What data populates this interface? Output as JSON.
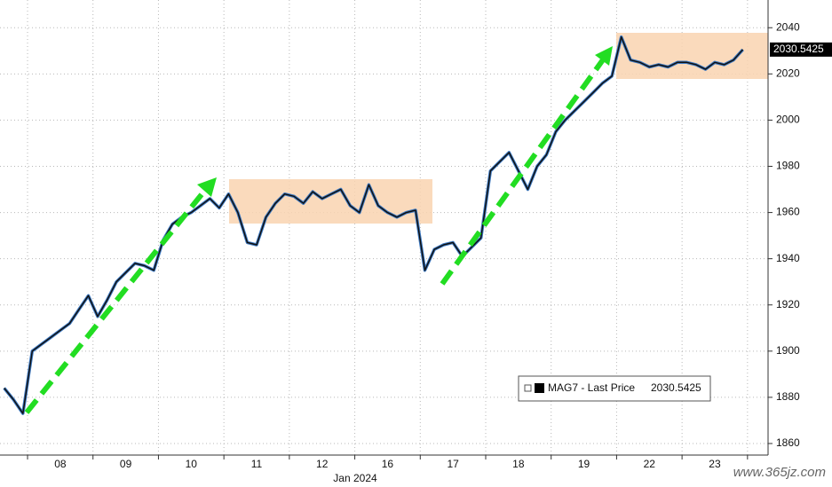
{
  "chart_data": {
    "type": "line",
    "categories": [
      null,
      null,
      null,
      null,
      null,
      null,
      "08",
      null,
      null,
      null,
      null,
      null,
      null,
      "09",
      null,
      null,
      null,
      null,
      null,
      null,
      "10",
      null,
      null,
      null,
      null,
      null,
      null,
      "11",
      null,
      null,
      null,
      null,
      null,
      null,
      "12",
      null,
      null,
      null,
      null,
      null,
      null,
      "16",
      null,
      null,
      null,
      null,
      null,
      null,
      "17",
      null,
      null,
      null,
      null,
      null,
      null,
      "18",
      null,
      null,
      null,
      null,
      null,
      null,
      "19",
      null,
      null,
      null,
      null,
      null,
      null,
      "22",
      null,
      null,
      null,
      null,
      null,
      null,
      "23",
      null,
      null,
      null
    ],
    "x_axis_label": "Jan 2024",
    "series": [
      {
        "name": "MAG7 - Last Price",
        "color": "#111111",
        "values": [
          1884,
          1879,
          1873,
          1900,
          1903,
          1906,
          1909,
          1912,
          1918,
          1924,
          1915,
          1922,
          1930,
          1934,
          1938,
          1937,
          1935,
          1948,
          1955,
          1958,
          1960,
          1963,
          1966,
          1962,
          1968,
          1960,
          1947,
          1946,
          1958,
          1964,
          1968,
          1967,
          1964,
          1969,
          1966,
          1968,
          1970,
          1963,
          1960,
          1972,
          1963,
          1960,
          1958,
          1960,
          1961,
          1935,
          1944,
          1946,
          1947,
          1941,
          1945,
          1949,
          1978,
          1982,
          1986,
          1978,
          1970,
          1980,
          1985,
          1995,
          2000,
          2004,
          2008,
          2012,
          2016,
          2019,
          2036,
          2026,
          2025,
          2023,
          2024,
          2023,
          2025,
          2025,
          2024,
          2022,
          2025,
          2024,
          2026,
          2030.5425
        ]
      }
    ],
    "ylim": [
      1855,
      2052
    ],
    "yticks": [
      1860,
      1880,
      1900,
      1920,
      1940,
      1960,
      1980,
      2000,
      2020,
      2040
    ],
    "grid": true,
    "legend": "lower right",
    "watermark": "www.365jz.com"
  }
}
